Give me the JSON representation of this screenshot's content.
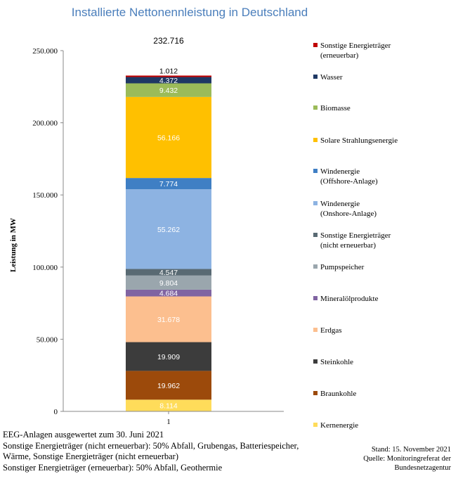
{
  "chart_data": {
    "type": "bar",
    "title": "Installierte Nettonennleistung  in Deutschland",
    "ylabel": "Leistung in MW",
    "xlabel": "",
    "categories": [
      "1"
    ],
    "ylim": [
      0,
      250000
    ],
    "yticks": [
      "0",
      "50.000",
      "100.000",
      "150.000",
      "200.000",
      "250.000"
    ],
    "total_label": "232.716",
    "stacked": true,
    "series": [
      {
        "name": "Kernenergie",
        "value": 8114,
        "label": "8.114",
        "color": "#ffdc5a",
        "label_color": "#ffffff"
      },
      {
        "name": "Braunkohle",
        "value": 19962,
        "label": "19.962",
        "color": "#9c4a0b",
        "label_color": "#ffffff"
      },
      {
        "name": "Steinkohle",
        "value": 19909,
        "label": "19.909",
        "color": "#3c3c3c",
        "label_color": "#ffffff"
      },
      {
        "name": "Erdgas",
        "value": 31678,
        "label": "31.678",
        "color": "#fcbf8f",
        "label_color": "#ffffff"
      },
      {
        "name": "Mineralölprodukte",
        "value": 4684,
        "label": "4.684",
        "color": "#8064a2",
        "label_color": "#ffffff"
      },
      {
        "name": "Pumpspeicher",
        "value": 9804,
        "label": "9.804",
        "color": "#9aa6ad",
        "label_color": "#ffffff"
      },
      {
        "name": "Sonstige Energieträger\n(nicht erneuerbar)",
        "value": 4547,
        "label": "4.547",
        "color": "#596a73",
        "label_color": "#ffffff"
      },
      {
        "name": "Windenergie\n(Onshore-Anlage)",
        "value": 55262,
        "label": "55.262",
        "color": "#8db3e2",
        "label_color": "#ffffff"
      },
      {
        "name": "Windenergie\n(Offshore-Anlage)",
        "value": 7774,
        "label": "7.774",
        "color": "#3f7fc4",
        "label_color": "#ffffff"
      },
      {
        "name": "Solare Strahlungsenergie",
        "value": 56166,
        "label": "56.166",
        "color": "#ffc000",
        "label_color": "#ffffff"
      },
      {
        "name": "Biomasse",
        "value": 9432,
        "label": "9.432",
        "color": "#9bbb59",
        "label_color": "#ffffff"
      },
      {
        "name": "Wasser",
        "value": 4372,
        "label": "4.372",
        "color": "#1f3864",
        "label_color": "#ffffff"
      },
      {
        "name": "Sonstige Energieträger\n(erneuerbar)",
        "value": 1012,
        "label": "1.012",
        "color": "#c00000",
        "label_color": "#000000"
      }
    ]
  },
  "footnotes": [
    "EEG-Anlagen ausgewertet zum 30. Juni 2021",
    "Sonstige Energieträger (nicht erneuerbar): 50% Abfall, Grubengas, Batteriespeicher,",
    "Wärme, Sonstige Energieträger (nicht erneuerbar)",
    "Sonstiger Energieträger (erneuerbar): 50% Abfall, Geothermie"
  ],
  "source": {
    "stand": "Stand: 15. November 2021",
    "quelle_line1": "Quelle: Monitoringreferat der",
    "quelle_line2": "Bundesnetzagentur"
  }
}
